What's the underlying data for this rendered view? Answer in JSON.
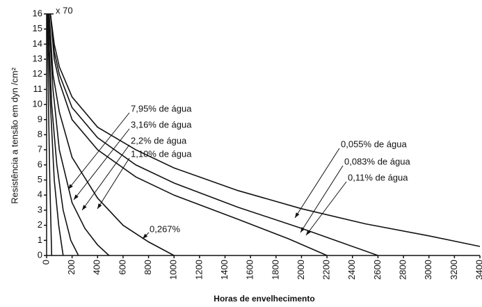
{
  "chart_data": {
    "type": "line",
    "y_label": "Resistência a tensão em      dyn /cm²",
    "x_label": "Horas de envelhecimento",
    "y_annotation": "x 70",
    "xlim": [
      0,
      3400
    ],
    "xticks": [
      0,
      200,
      400,
      600,
      800,
      1000,
      1200,
      1400,
      1600,
      1800,
      2000,
      2200,
      2400,
      2600,
      2800,
      3000,
      3200,
      3400
    ],
    "ylim": [
      0,
      16
    ],
    "yticks": [
      0,
      1,
      2,
      3,
      4,
      5,
      6,
      7,
      8,
      9,
      10,
      11,
      12,
      13,
      14,
      15,
      16
    ],
    "series": [
      {
        "name": "7,95% de água",
        "color": "#111111",
        "x": [
          5,
          15,
          25,
          40
        ],
        "values": [
          16,
          10,
          5,
          0
        ]
      },
      {
        "name": "3,16% de água",
        "color": "#111111",
        "x": [
          8,
          30,
          60,
          95,
          130
        ],
        "values": [
          16,
          10,
          5,
          2,
          0
        ]
      },
      {
        "name": "2,2% de água",
        "color": "#111111",
        "x": [
          10,
          40,
          80,
          130,
          190,
          250
        ],
        "values": [
          16,
          10,
          6,
          3,
          1,
          0
        ]
      },
      {
        "name": "1,10% de água",
        "color": "#111111",
        "x": [
          15,
          50,
          100,
          200,
          300,
          400,
          490
        ],
        "values": [
          16,
          11,
          7,
          3.5,
          1.8,
          0.7,
          0
        ]
      },
      {
        "name": "0,267%",
        "color": "#111111",
        "x": [
          20,
          50,
          100,
          200,
          400,
          600,
          800,
          1000
        ],
        "values": [
          16,
          12,
          9.5,
          6.5,
          3.8,
          2,
          0.9,
          0
        ]
      },
      {
        "name": "0,11% de água",
        "color": "#111111",
        "x": [
          30,
          60,
          100,
          200,
          400,
          700,
          1000,
          1500,
          1900,
          2200
        ],
        "values": [
          16,
          13,
          11.5,
          9,
          7,
          5.2,
          4,
          2.4,
          1.1,
          0
        ]
      },
      {
        "name": "0,083% de água",
        "color": "#111111",
        "x": [
          30,
          60,
          100,
          200,
          400,
          700,
          1000,
          1500,
          2000,
          2300,
          2600
        ],
        "values": [
          16,
          13.5,
          12,
          9.8,
          7.8,
          6,
          4.8,
          3.2,
          1.8,
          0.9,
          0
        ]
      },
      {
        "name": "0,055% de água",
        "color": "#111111",
        "x": [
          30,
          60,
          100,
          200,
          400,
          700,
          1000,
          1500,
          2000,
          2500,
          3000,
          3400
        ],
        "values": [
          16,
          14,
          12.5,
          10.5,
          8.5,
          7,
          5.8,
          4.3,
          3.1,
          2.1,
          1.3,
          0.6
        ]
      }
    ]
  }
}
